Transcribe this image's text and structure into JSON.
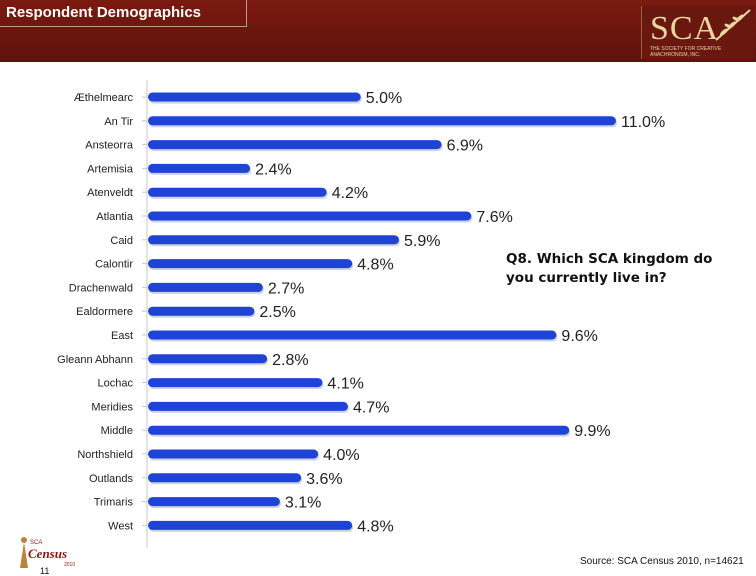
{
  "header": {
    "title": "Respondent Demographics"
  },
  "logo": {
    "text": "SCA",
    "subtitle": "THE SOCIETY FOR CREATIVE ANACHRONISM, INC."
  },
  "question": "Q8. Which SCA kingdom do you currently live in?",
  "source": "Source: SCA Census 2010, n=14621",
  "page_number": "11",
  "census_logo": {
    "text": "Census",
    "top": "SCA",
    "year": "2010"
  },
  "colors": {
    "bar": "#1f43d6",
    "header": "#6b150d"
  },
  "chart_data": {
    "type": "bar",
    "orientation": "horizontal",
    "categories": [
      "Æthelmearc",
      "An Tir",
      "Ansteorra",
      "Artemisia",
      "Atenveldt",
      "Atlantia",
      "Caid",
      "Calontir",
      "Drachenwald",
      "Ealdormere",
      "East",
      "Gleann Abhann",
      "Lochac",
      "Meridies",
      "Middle",
      "Northshield",
      "Outlands",
      "Trimaris",
      "West"
    ],
    "values": [
      5.0,
      11.0,
      6.9,
      2.4,
      4.2,
      7.6,
      5.9,
      4.8,
      2.7,
      2.5,
      9.6,
      2.8,
      4.1,
      4.7,
      9.9,
      4.0,
      3.6,
      3.1,
      4.8
    ],
    "labels": [
      "5.0%",
      "11.0%",
      "6.9%",
      "2.4%",
      "4.2%",
      "7.6%",
      "5.9%",
      "4.8%",
      "2.7%",
      "2.5%",
      "9.6%",
      "2.8%",
      "4.1%",
      "4.7%",
      "9.9%",
      "4.0%",
      "3.6%",
      "3.1%",
      "4.8%"
    ],
    "xlim": [
      0,
      11.0
    ],
    "grid": false,
    "legend": "none"
  }
}
